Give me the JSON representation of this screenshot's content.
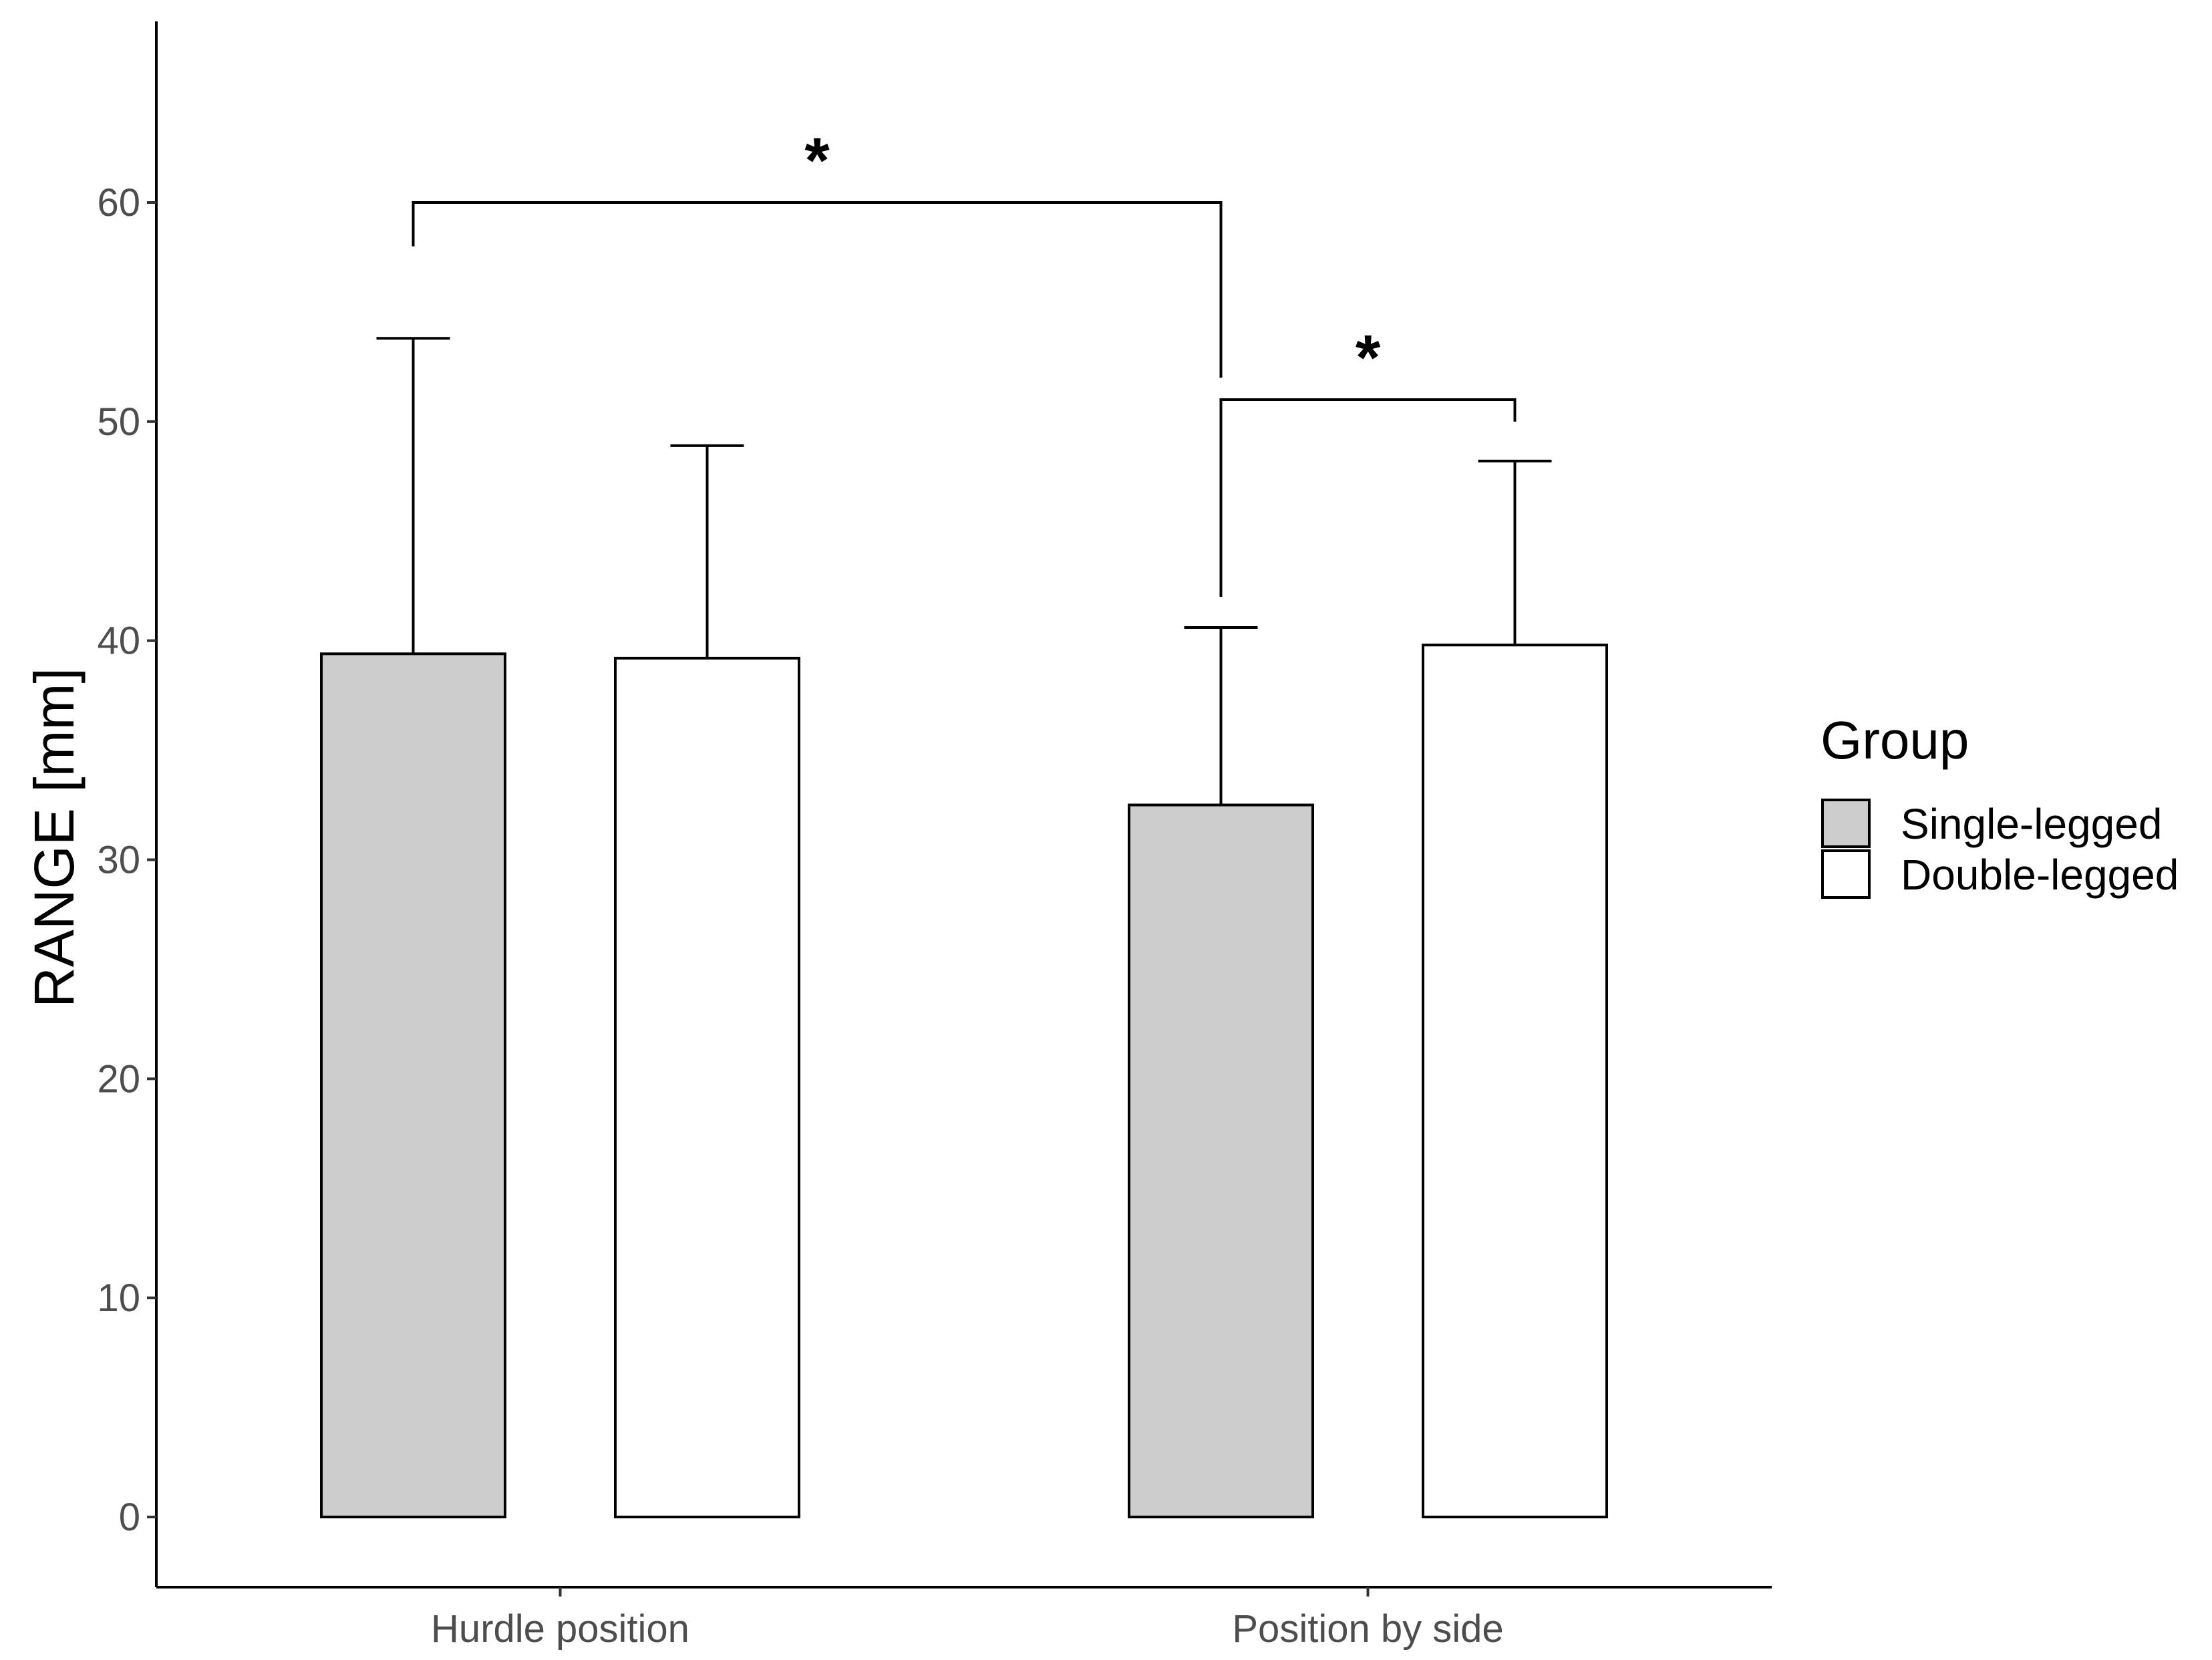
{
  "chart_data": {
    "type": "bar",
    "title": "",
    "xlabel": "",
    "ylabel": "RANGE [mm]",
    "ylim": [
      -3.2,
      68
    ],
    "yticks": [
      0,
      10,
      20,
      30,
      40,
      50,
      60
    ],
    "categories": [
      "Hurdle position",
      "Position by side"
    ],
    "grid": false,
    "legend": {
      "title": "Group",
      "position": "right"
    },
    "series": [
      {
        "name": "Single-legged",
        "color": "#cccccc",
        "values": [
          39.4,
          32.5
        ],
        "error_upper": [
          53.8,
          40.6
        ]
      },
      {
        "name": "Double-legged",
        "color": "#ffffff",
        "values": [
          39.2,
          39.8
        ],
        "error_upper": [
          48.9,
          48.2
        ]
      }
    ],
    "significance": [
      {
        "from": "Hurdle position / Single-legged",
        "to": "Position by side / Single-legged",
        "y": 60,
        "label": "*"
      },
      {
        "from": "Position by side / Single-legged",
        "to": "Position by side / Double-legged",
        "y": 51,
        "label": "*"
      }
    ]
  }
}
